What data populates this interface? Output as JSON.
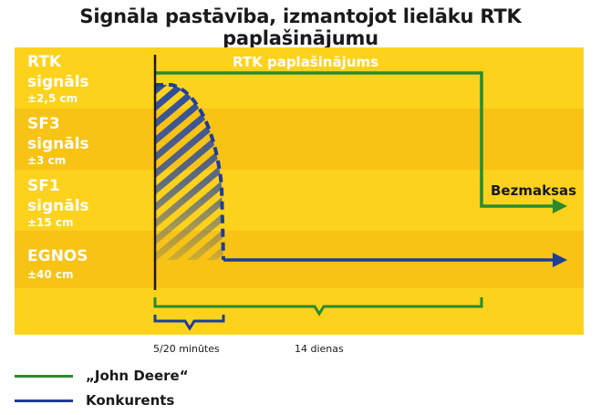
{
  "title": "Signāla pastāvība, izmantojot lielāku RTK paplašinājumu",
  "bands": [
    {
      "name": "RTK",
      "sub": "signāls",
      "accuracy": "±2,5 cm"
    },
    {
      "name": "SF3",
      "sub": "signāls",
      "accuracy": "±3 cm"
    },
    {
      "name": "SF1",
      "sub": "signāls",
      "accuracy": "±15 cm"
    },
    {
      "name": "EGNOS",
      "sub": "",
      "accuracy": "±40 cm"
    }
  ],
  "annotations": {
    "rtk_extension": "RTK paplašinājums",
    "free": "Bezmaksas",
    "short_period": "5/20 minūtes",
    "long_period": "14 dienas"
  },
  "legend": [
    {
      "label": "„John Deere“",
      "color": "#2a8a2e"
    },
    {
      "label": "Konkurents",
      "color": "#1f3d99"
    }
  ],
  "colors": {
    "band_light": "#fdd21c",
    "band_dark": "#f7c315",
    "green": "#2a8a2e",
    "blue": "#1f3d99"
  }
}
